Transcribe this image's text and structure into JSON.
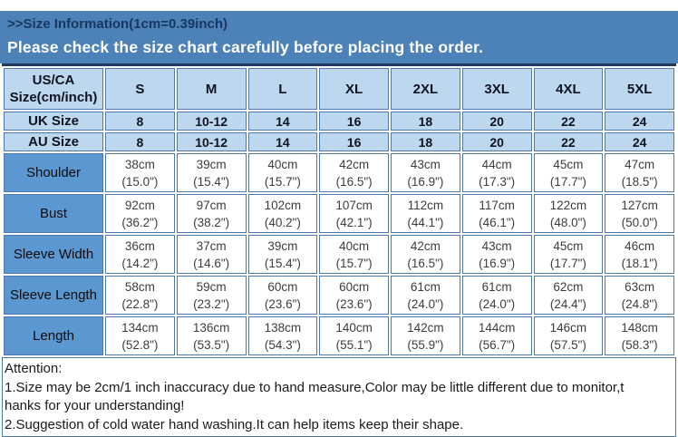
{
  "page": {
    "title": ">>Size Information(1cm=0.39inch)",
    "notice": "Please check the size chart carefully before placing the order."
  },
  "table": {
    "corner": {
      "line1": "US/CA",
      "line2": "Size(cm/inch)"
    },
    "size_headers": [
      "S",
      "M",
      "L",
      "XL",
      "2XL",
      "3XL",
      "4XL",
      "5XL"
    ],
    "region_rows": [
      {
        "label": "UK Size",
        "values": [
          "8",
          "10-12",
          "14",
          "16",
          "18",
          "20",
          "22",
          "24"
        ]
      },
      {
        "label": "AU Size",
        "values": [
          "8",
          "10-12",
          "14",
          "16",
          "18",
          "20",
          "22",
          "24"
        ]
      }
    ],
    "measurement_rows": [
      {
        "label": "Shoulder",
        "cm": [
          "38cm",
          "39cm",
          "40cm",
          "42cm",
          "43cm",
          "44cm",
          "45cm",
          "47cm"
        ],
        "inch": [
          "(15.0\")",
          "(15.4\")",
          "(15.7\")",
          "(16.5\")",
          "(16.9\")",
          "(17.3\")",
          "(17.7\")",
          "(18.5\")"
        ]
      },
      {
        "label": "Bust",
        "cm": [
          "92cm",
          "97cm",
          "102cm",
          "107cm",
          "112cm",
          "117cm",
          "122cm",
          "127cm"
        ],
        "inch": [
          "(36.2\")",
          "(38.2\")",
          "(40.2\")",
          "(42.1\")",
          "(44.1\")",
          "(46.1\")",
          "(48.0\")",
          "(50.0\")"
        ]
      },
      {
        "label": "Sleeve Width",
        "cm": [
          "36cm",
          "37cm",
          "39cm",
          "40cm",
          "42cm",
          "43cm",
          "45cm",
          "46cm"
        ],
        "inch": [
          "(14.2\")",
          "(14.6\")",
          "(15.4\")",
          "(15.7\")",
          "(16.5\")",
          "(16.9\")",
          "(17.7\")",
          "(18.1\")"
        ]
      },
      {
        "label": "Sleeve Length",
        "cm": [
          "58cm",
          "59cm",
          "60cm",
          "60cm",
          "61cm",
          "61cm",
          "62cm",
          "63cm"
        ],
        "inch": [
          "(22.8\")",
          "(23.2\")",
          "(23.6\")",
          "(23.6\")",
          "(24.0\")",
          "(24.0\")",
          "(24.4\")",
          "(24.8\")"
        ]
      },
      {
        "label": "Length",
        "cm": [
          "134cm",
          "136cm",
          "138cm",
          "140cm",
          "142cm",
          "144cm",
          "146cm",
          "148cm"
        ],
        "inch": [
          "(52.8\")",
          "(53.5\")",
          "(54.3\")",
          "(55.1\")",
          "(55.9\")",
          "(56.7\")",
          "(57.5\")",
          "(58.3\")"
        ]
      }
    ]
  },
  "attention": {
    "lines": [
      "Attention:",
      "1.Size may be 2cm/1 inch inaccuracy due to hand measure,Color may be little different due to monitor,t",
      "hanks for your understanding!",
      "2.Suggestion of cold water hand washing.It can help items keep their shape."
    ]
  },
  "colors": {
    "banner_bg": "#4d82b8",
    "title_text": "#17375e",
    "table_top_border": "#1d3a5f",
    "cell_border": "#4d79ad",
    "header_cell_bg": "#bcd7ee",
    "header_text": "#0f1420",
    "label_cell_bg": "#5b97d1",
    "data_text": "#3d3d3d"
  }
}
